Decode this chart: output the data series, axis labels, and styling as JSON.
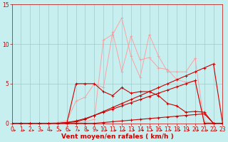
{
  "bg_color": "#c8efef",
  "grid_color": "#a0cccc",
  "line_color_light": "#ff9999",
  "line_color_dark": "#cc0000",
  "xlabel": "Vent moyen/en rafales ( km/h )",
  "xlim": [
    0,
    23
  ],
  "ylim": [
    0,
    15
  ],
  "xticks": [
    0,
    1,
    2,
    3,
    4,
    5,
    6,
    7,
    8,
    9,
    10,
    11,
    12,
    13,
    14,
    15,
    16,
    17,
    18,
    19,
    20,
    21,
    22,
    23
  ],
  "yticks": [
    0,
    5,
    10,
    15
  ],
  "tick_fontsize": 5.5,
  "label_fontsize": 6.5,
  "light_series": [
    [
      0,
      0,
      0,
      0,
      0,
      0,
      0,
      0.1,
      0.2,
      0.5,
      10.5,
      11.2,
      13.3,
      8.5,
      5.8,
      11.2,
      8.5,
      6.5,
      6.5,
      6.5,
      8.2,
      0.0,
      0.0,
      0.0
    ],
    [
      0,
      0,
      0,
      0,
      0,
      0.1,
      0.3,
      2.8,
      3.3,
      5.0,
      4.5,
      11.5,
      6.5,
      11.0,
      8.0,
      8.3,
      7.0,
      6.8,
      5.5,
      5.2,
      5.3,
      0.2,
      0.0,
      0.0
    ]
  ],
  "dark_series": [
    [
      0,
      0,
      0,
      0,
      0,
      0,
      0,
      5.0,
      5.0,
      5.0,
      4.0,
      3.5,
      4.5,
      3.8,
      4.0,
      4.0,
      3.5,
      2.5,
      2.2,
      1.4,
      1.5,
      1.4,
      0.0,
      0.0
    ],
    [
      0,
      0,
      0,
      0,
      0,
      0,
      0.1,
      0.2,
      0.5,
      1.0,
      1.5,
      2.0,
      2.5,
      3.0,
      3.5,
      4.0,
      4.5,
      5.0,
      5.5,
      6.0,
      6.5,
      7.0,
      7.5,
      0.0
    ],
    [
      0,
      0,
      0,
      0,
      0,
      0,
      0.1,
      0.3,
      0.6,
      1.0,
      1.4,
      1.8,
      2.2,
      2.6,
      3.0,
      3.4,
      3.8,
      4.2,
      4.6,
      5.0,
      5.4,
      0.0,
      0.0,
      0.0
    ],
    [
      0,
      0,
      0,
      0,
      0,
      0,
      0,
      0.0,
      0.0,
      0.0,
      0.1,
      0.2,
      0.3,
      0.4,
      0.5,
      0.6,
      0.7,
      0.8,
      0.9,
      1.0,
      1.1,
      1.2,
      0.0,
      0.0
    ]
  ]
}
